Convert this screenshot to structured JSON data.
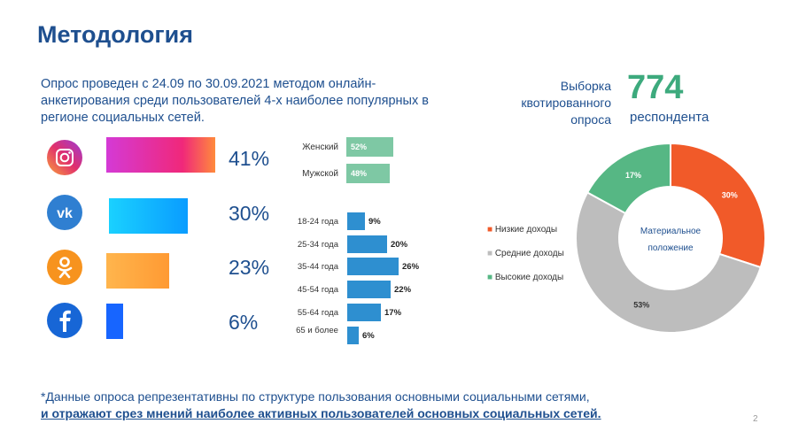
{
  "title": "Методология",
  "intro": "Опрос проведен с 24.09 по 30.09.2021 методом онлайн-анкетирования среди пользователей 4-х наиболее популярных в регионе социальных сетей.",
  "social": [
    {
      "icon": "instagram-icon",
      "pct": "41%",
      "value": 41,
      "color": "#e1306c"
    },
    {
      "icon": "vk-icon",
      "pct": "30%",
      "value": 30,
      "color": "#1ab0ff"
    },
    {
      "icon": "odnoklassniki-icon",
      "pct": "23%",
      "value": 23,
      "color": "#ffa33a"
    },
    {
      "icon": "facebook-icon",
      "pct": "6%",
      "value": 6,
      "color": "#1765ff"
    }
  ],
  "gender": [
    {
      "label": "Женский",
      "pct": "52%",
      "value": 52
    },
    {
      "label": "Мужской",
      "pct": "48%",
      "value": 48
    }
  ],
  "age": [
    {
      "label": "18-24 года",
      "pct": "9%",
      "value": 9
    },
    {
      "label": "25-34 года",
      "pct": "20%",
      "value": 20
    },
    {
      "label": "35-44 года",
      "pct": "26%",
      "value": 26
    },
    {
      "label": "45-54 года",
      "pct": "22%",
      "value": 22
    },
    {
      "label": "55-64 года",
      "pct": "17%",
      "value": 17
    },
    {
      "label": "65 и более",
      "pct": "6%",
      "value": 6
    }
  ],
  "sample": {
    "label_line1": "Выборка",
    "label_line2": "квотированного",
    "label_line3": "опроса",
    "count": "774",
    "unit": "респондента"
  },
  "chart_data": {
    "type": "pie",
    "title": "",
    "center_label": "Материальное положение",
    "categories": [
      "Низкие доходы",
      "Средние доходы",
      "Высокие доходы"
    ],
    "values": [
      30,
      53,
      17
    ],
    "value_labels": [
      "30%",
      "53%",
      "17%"
    ],
    "colors": [
      "#f15a29",
      "#bdbdbd",
      "#56b784"
    ],
    "legend_position": "left"
  },
  "footnote": {
    "line1": "*Данные опроса репрезентативны по структуре пользования основными социальными сетями,",
    "line2": "и отражают срез мнений наиболее активных пользователей основных социальных сетей."
  },
  "page_number": "2"
}
